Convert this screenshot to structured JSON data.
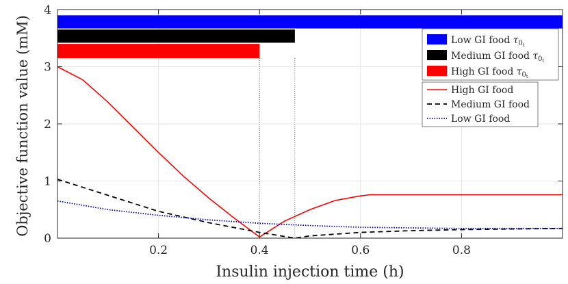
{
  "chart_data": {
    "type": "line",
    "xlabel": "Insulin injection time (h)",
    "ylabel": "Objective function value (mM)",
    "xlim": [
      0,
      1
    ],
    "ylim": [
      0,
      4
    ],
    "xticks": [
      0.2,
      0.4,
      0.6,
      0.8
    ],
    "yticks": [
      0,
      1,
      2,
      3,
      4
    ],
    "xtick_labels": [
      "0.2",
      "0.4",
      "0.6",
      "0.8"
    ],
    "ytick_labels": [
      "0",
      "1",
      "2",
      "3",
      "4"
    ],
    "grid": true,
    "legend_position": "top-right",
    "series": [
      {
        "name": "High GI food",
        "color": "#ff0000",
        "dash": "solid",
        "x": [
          0,
          0.05,
          0.1,
          0.15,
          0.2,
          0.25,
          0.3,
          0.35,
          0.4,
          0.45,
          0.5,
          0.55,
          0.6,
          0.62,
          0.7,
          0.8,
          0.9,
          1.0
        ],
        "y": [
          3.0,
          2.77,
          2.38,
          1.94,
          1.5,
          1.08,
          0.7,
          0.35,
          0.02,
          0.3,
          0.5,
          0.66,
          0.74,
          0.76,
          0.76,
          0.76,
          0.76,
          0.76
        ]
      },
      {
        "name": "Medium GI food",
        "color": "#000000",
        "dash": "dashed",
        "x": [
          0,
          0.1,
          0.2,
          0.3,
          0.4,
          0.47,
          0.5,
          0.6,
          0.7,
          0.8,
          0.9,
          1.0
        ],
        "y": [
          1.03,
          0.75,
          0.47,
          0.27,
          0.1,
          0.0,
          0.04,
          0.1,
          0.13,
          0.15,
          0.16,
          0.17
        ]
      },
      {
        "name": "Low GI food",
        "color": "#0000cc",
        "dash": "dotted",
        "x": [
          0,
          0.1,
          0.2,
          0.3,
          0.4,
          0.5,
          0.6,
          0.7,
          0.8,
          0.9,
          1.0
        ],
        "y": [
          0.65,
          0.5,
          0.4,
          0.32,
          0.26,
          0.22,
          0.19,
          0.18,
          0.17,
          0.17,
          0.17
        ]
      }
    ],
    "bars": [
      {
        "name": "Low GI food τ0t",
        "color": "#0000ff",
        "x_start": 0,
        "x_end": 1.0,
        "y_bottom": 3.67,
        "y_top": 3.9
      },
      {
        "name": "Medium GI food τ0t",
        "color": "#000000",
        "x_start": 0,
        "x_end": 0.47,
        "y_bottom": 3.42,
        "y_top": 3.65
      },
      {
        "name": "High GI food τ0t",
        "color": "#ff0000",
        "x_start": 0,
        "x_end": 0.4,
        "y_bottom": 3.15,
        "y_top": 3.4
      }
    ],
    "vlines": [
      0.4,
      0.47
    ]
  }
}
